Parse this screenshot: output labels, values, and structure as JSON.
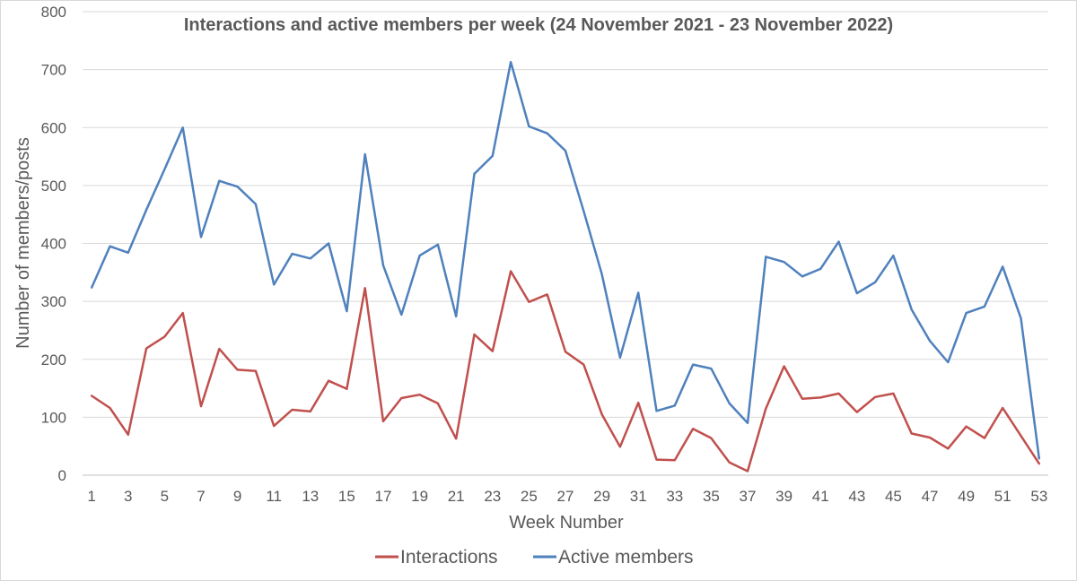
{
  "chart_data": {
    "type": "line",
    "title": "Interactions and active members per week (24 November 2021 - 23 November 2022)",
    "xlabel": "Week Number",
    "ylabel": "Number of members/posts",
    "ylim": [
      0,
      800
    ],
    "yticks": [
      "0",
      "100",
      "200",
      "300",
      "400",
      "500",
      "600",
      "700",
      "800"
    ],
    "x": [
      1,
      2,
      3,
      4,
      5,
      6,
      7,
      8,
      9,
      10,
      11,
      12,
      13,
      14,
      15,
      16,
      17,
      18,
      19,
      20,
      21,
      22,
      23,
      24,
      25,
      26,
      27,
      28,
      29,
      30,
      31,
      32,
      33,
      34,
      35,
      36,
      37,
      38,
      39,
      40,
      41,
      42,
      43,
      44,
      45,
      46,
      47,
      48,
      49,
      50,
      51,
      52,
      53
    ],
    "xtick_labels": [
      "1",
      "3",
      "5",
      "7",
      "9",
      "11",
      "13",
      "15",
      "17",
      "19",
      "21",
      "23",
      "25",
      "27",
      "29",
      "31",
      "33",
      "35",
      "37",
      "39",
      "41",
      "43",
      "45",
      "47",
      "49",
      "51",
      "53"
    ],
    "grid": true,
    "legend_position": "bottom",
    "series": [
      {
        "name": "Interactions",
        "color": "#c0504d",
        "values": [
          137,
          116,
          70,
          219,
          239,
          280,
          119,
          218,
          182,
          180,
          85,
          113,
          110,
          163,
          149,
          323,
          93,
          133,
          139,
          124,
          63,
          243,
          214,
          352,
          299,
          312,
          213,
          191,
          105,
          49,
          125,
          27,
          26,
          80,
          64,
          22,
          7,
          115,
          188,
          132,
          134,
          141,
          109,
          135,
          141,
          72,
          65,
          46,
          84,
          64,
          116,
          68,
          20
        ]
      },
      {
        "name": "Active members",
        "color": "#4f81bd",
        "values": [
          324,
          395,
          384,
          458,
          528,
          600,
          411,
          508,
          498,
          468,
          329,
          382,
          374,
          400,
          283,
          554,
          362,
          277,
          379,
          398,
          274,
          520,
          551,
          713,
          602,
          590,
          560,
          456,
          347,
          203,
          315,
          111,
          120,
          191,
          184,
          124,
          90,
          377,
          368,
          343,
          356,
          403,
          314,
          333,
          379,
          286,
          232,
          195,
          280,
          291,
          360,
          271,
          29
        ]
      }
    ]
  }
}
